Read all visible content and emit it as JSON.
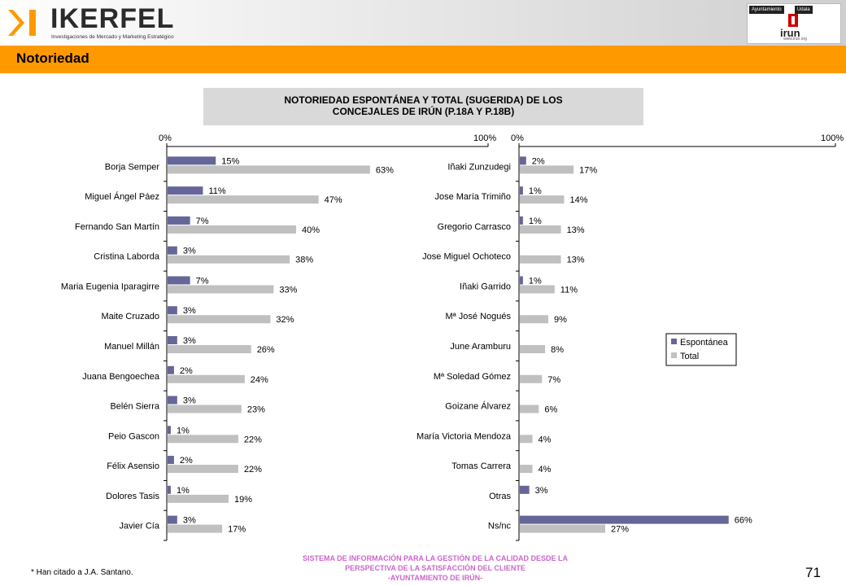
{
  "header": {
    "brand": "IKERFEL",
    "brand_sub": "Investigaciones de Mercado y Marketing Estratégico",
    "partner_tag_1": "Ayuntamiento",
    "partner_tag_2": "Udala",
    "partner_name": "irun",
    "partner_web": "www.irun.org"
  },
  "section_title": "Notoriedad",
  "chart_title_line1": "NOTORIEDAD ESPONTÁNEA Y TOTAL (SUGERIDA) DE LOS",
  "chart_title_line2": "CONCEJALES DE IRÚN (P.18A Y P.18B)",
  "footnote": "* Han citado a J.A. Santano.",
  "footer": {
    "line1": "SISTEMA DE INFORMACIÓN PARA LA GESTIÓN DE LA CALIDAD DESDE LA",
    "line2": "PERSPECTIVA DE LA SATISFACCIÓN DEL CLIENTE",
    "line3": "-AYUNTAMIENTO DE IRÚN-"
  },
  "page_number": "71",
  "colors": {
    "espontanea": "#666699",
    "total": "#c0c0c0",
    "band": "#ff9900"
  },
  "chart_data": [
    {
      "type": "bar",
      "orientation": "horizontal",
      "xlim": [
        0,
        100
      ],
      "x_ticks": [
        "0%",
        "100%"
      ],
      "categories": [
        "Borja Semper",
        "Miguel Ángel Páez",
        "Fernando San Martín",
        "Cristina Laborda",
        "Maria Eugenia Iparagirre",
        "Maite Cruzado",
        "Manuel Millán",
        "Juana Bengoechea",
        "Belén Sierra",
        "Peio Gascon",
        "Félix Asensio",
        "Dolores Tasis",
        "Javier Cía"
      ],
      "series": [
        {
          "name": "Espontánea",
          "values": [
            15,
            11,
            7,
            3,
            7,
            3,
            3,
            2,
            3,
            1,
            2,
            1,
            3
          ]
        },
        {
          "name": "Total",
          "values": [
            63,
            47,
            40,
            38,
            33,
            32,
            26,
            24,
            23,
            22,
            22,
            19,
            17
          ]
        }
      ]
    },
    {
      "type": "bar",
      "orientation": "horizontal",
      "xlim": [
        0,
        100
      ],
      "x_ticks": [
        "0%",
        "100%"
      ],
      "legend": "right",
      "categories": [
        "Iñaki Zunzudegi",
        "Jose María Trimiño",
        "Gregorio Carrasco",
        "Jose Miguel Ochoteco",
        "Iñaki Garrido",
        "Mª José Nogués",
        "June Aramburu",
        "Mª Soledad Gómez",
        "Goizane Álvarez",
        "María Victoria Mendoza",
        "Tomas Carrera",
        "Otras",
        "Ns/nc"
      ],
      "series": [
        {
          "name": "Espontánea",
          "values": [
            2,
            1,
            1,
            null,
            1,
            null,
            null,
            null,
            null,
            null,
            null,
            3,
            66
          ]
        },
        {
          "name": "Total",
          "values": [
            17,
            14,
            13,
            13,
            11,
            9,
            8,
            7,
            6,
            4,
            4,
            null,
            27
          ]
        }
      ]
    }
  ]
}
